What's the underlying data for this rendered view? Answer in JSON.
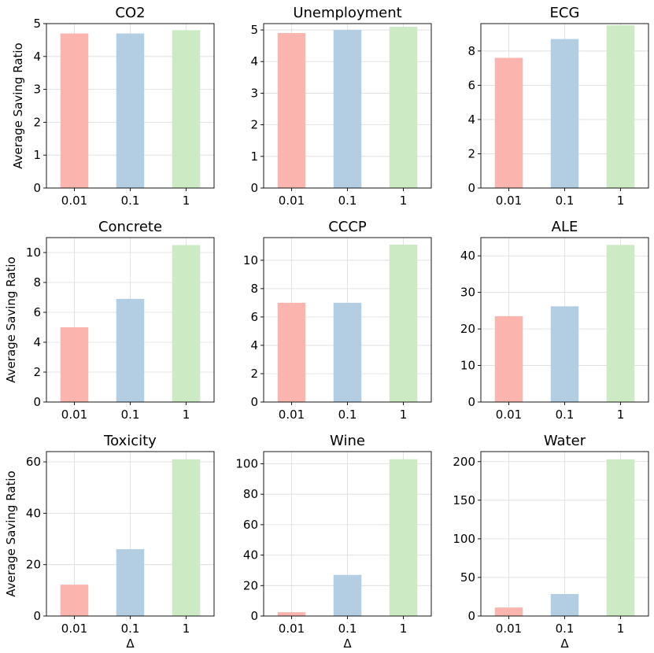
{
  "figure": {
    "ylabel": "Average Saving Ratio",
    "xlabel": "Δ",
    "colors": [
      "#fbb4ae",
      "#b3cde3",
      "#ccebc5"
    ]
  },
  "chart_data": [
    {
      "type": "bar",
      "title": "CO2",
      "categories": [
        "0.01",
        "0.1",
        "1"
      ],
      "values": [
        4.7,
        4.7,
        4.8
      ],
      "ylim": [
        0,
        5
      ],
      "yticks": [
        0,
        1,
        2,
        3,
        4,
        5
      ],
      "grid": true
    },
    {
      "type": "bar",
      "title": "Unemployment",
      "categories": [
        "0.01",
        "0.1",
        "1"
      ],
      "values": [
        4.9,
        5.0,
        5.1
      ],
      "ylim": [
        0,
        5.2
      ],
      "yticks": [
        0,
        1,
        2,
        3,
        4,
        5
      ],
      "grid": true
    },
    {
      "type": "bar",
      "title": "ECG",
      "categories": [
        "0.01",
        "0.1",
        "1"
      ],
      "values": [
        7.6,
        8.7,
        9.5
      ],
      "ylim": [
        0,
        9.6
      ],
      "yticks": [
        0,
        2,
        4,
        6,
        8
      ],
      "grid": true
    },
    {
      "type": "bar",
      "title": "Concrete",
      "categories": [
        "0.01",
        "0.1",
        "1"
      ],
      "values": [
        5.0,
        6.9,
        10.5
      ],
      "ylim": [
        0,
        11
      ],
      "yticks": [
        0,
        2,
        4,
        6,
        8,
        10
      ],
      "grid": true
    },
    {
      "type": "bar",
      "title": "CCCP",
      "categories": [
        "0.01",
        "0.1",
        "1"
      ],
      "values": [
        7.0,
        7.0,
        11.1
      ],
      "ylim": [
        0,
        11.6
      ],
      "yticks": [
        0,
        2,
        4,
        6,
        8,
        10
      ],
      "grid": true
    },
    {
      "type": "bar",
      "title": "ALE",
      "categories": [
        "0.01",
        "0.1",
        "1"
      ],
      "values": [
        23.5,
        26.2,
        43.0
      ],
      "ylim": [
        0,
        45
      ],
      "yticks": [
        0,
        10,
        20,
        30,
        40
      ],
      "grid": true
    },
    {
      "type": "bar",
      "title": "Toxicity",
      "categories": [
        "0.01",
        "0.1",
        "1"
      ],
      "values": [
        12.2,
        26.0,
        61.0
      ],
      "ylim": [
        0,
        64
      ],
      "yticks": [
        0,
        20,
        40,
        60
      ],
      "grid": true
    },
    {
      "type": "bar",
      "title": "Wine",
      "categories": [
        "0.01",
        "0.1",
        "1"
      ],
      "values": [
        2.5,
        27.0,
        103.0
      ],
      "ylim": [
        0,
        108
      ],
      "yticks": [
        0,
        20,
        40,
        60,
        80,
        100
      ],
      "grid": true
    },
    {
      "type": "bar",
      "title": "Water",
      "categories": [
        "0.01",
        "0.1",
        "1"
      ],
      "values": [
        11.0,
        28.5,
        203.0
      ],
      "ylim": [
        0,
        213
      ],
      "yticks": [
        0,
        50,
        100,
        150,
        200
      ],
      "grid": true
    }
  ]
}
